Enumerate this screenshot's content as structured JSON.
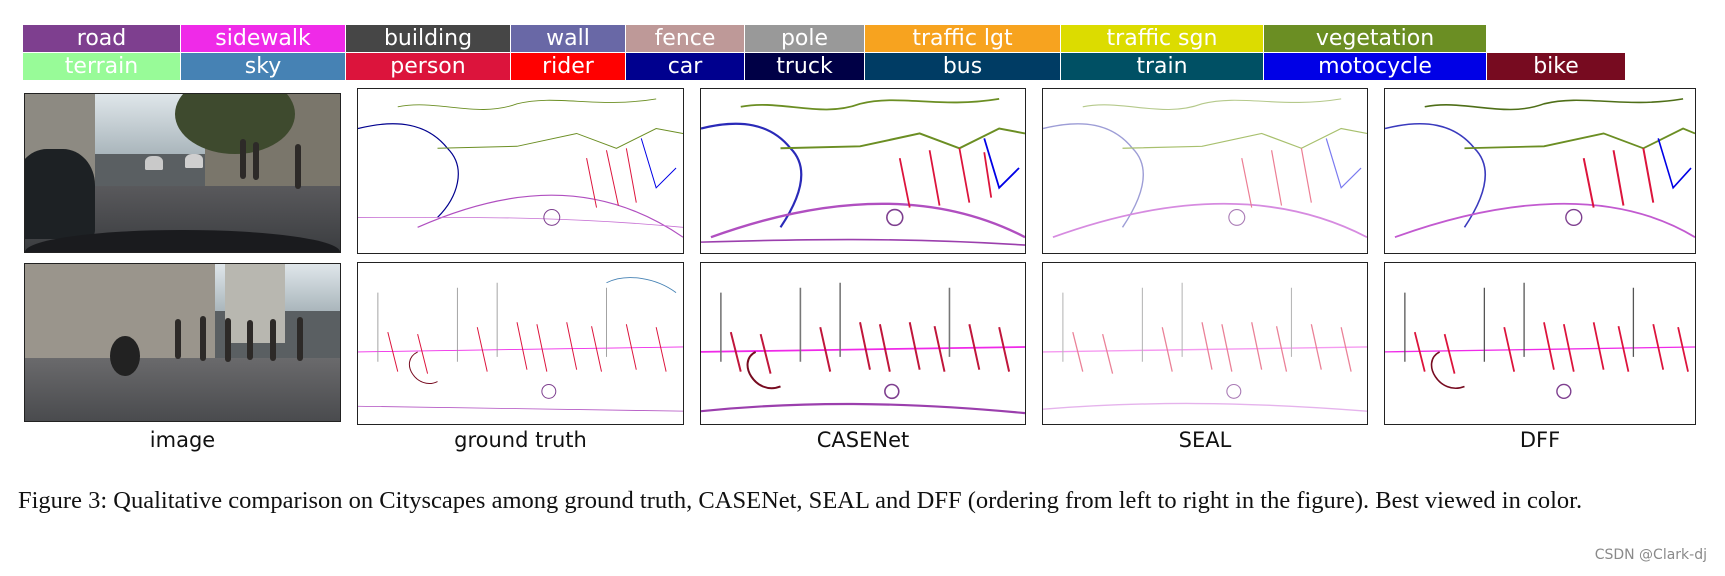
{
  "legend": {
    "row1": [
      {
        "label": "road",
        "color": "#7e3f8f"
      },
      {
        "label": "sidewalk",
        "color": "#ef2ae8"
      },
      {
        "label": "building",
        "color": "#464646"
      },
      {
        "label": "wall",
        "color": "#6968a6"
      },
      {
        "label": "fence",
        "color": "#be9998"
      },
      {
        "label": "pole",
        "color": "#999999"
      },
      {
        "label": "traffic lgt",
        "color": "#f7a31f"
      },
      {
        "label": "traffic sgn",
        "color": "#dcdc00"
      },
      {
        "label": "vegetation",
        "color": "#6b8e23"
      }
    ],
    "row2": [
      {
        "label": "terrain",
        "color": "#98fb98"
      },
      {
        "label": "sky",
        "color": "#4682b4"
      },
      {
        "label": "person",
        "color": "#dc143c"
      },
      {
        "label": "rider",
        "color": "#ff0000"
      },
      {
        "label": "car",
        "color": "#00008e"
      },
      {
        "label": "truck",
        "color": "#000046"
      },
      {
        "label": "bus",
        "color": "#003c64"
      },
      {
        "label": "train",
        "color": "#005064"
      },
      {
        "label": "motocycle",
        "color": "#0000e6"
      },
      {
        "label": "bike",
        "color": "#770b20"
      }
    ]
  },
  "columns": [
    "image",
    "ground truth",
    "CASENet",
    "SEAL",
    "DFF"
  ],
  "caption": "Figure 3: Qualitative comparison on Cityscapes among ground truth, CASENet, SEAL and DFF (ordering from left to right in the figure). Best viewed in color.",
  "watermark": "CSDN @Clark-dj"
}
